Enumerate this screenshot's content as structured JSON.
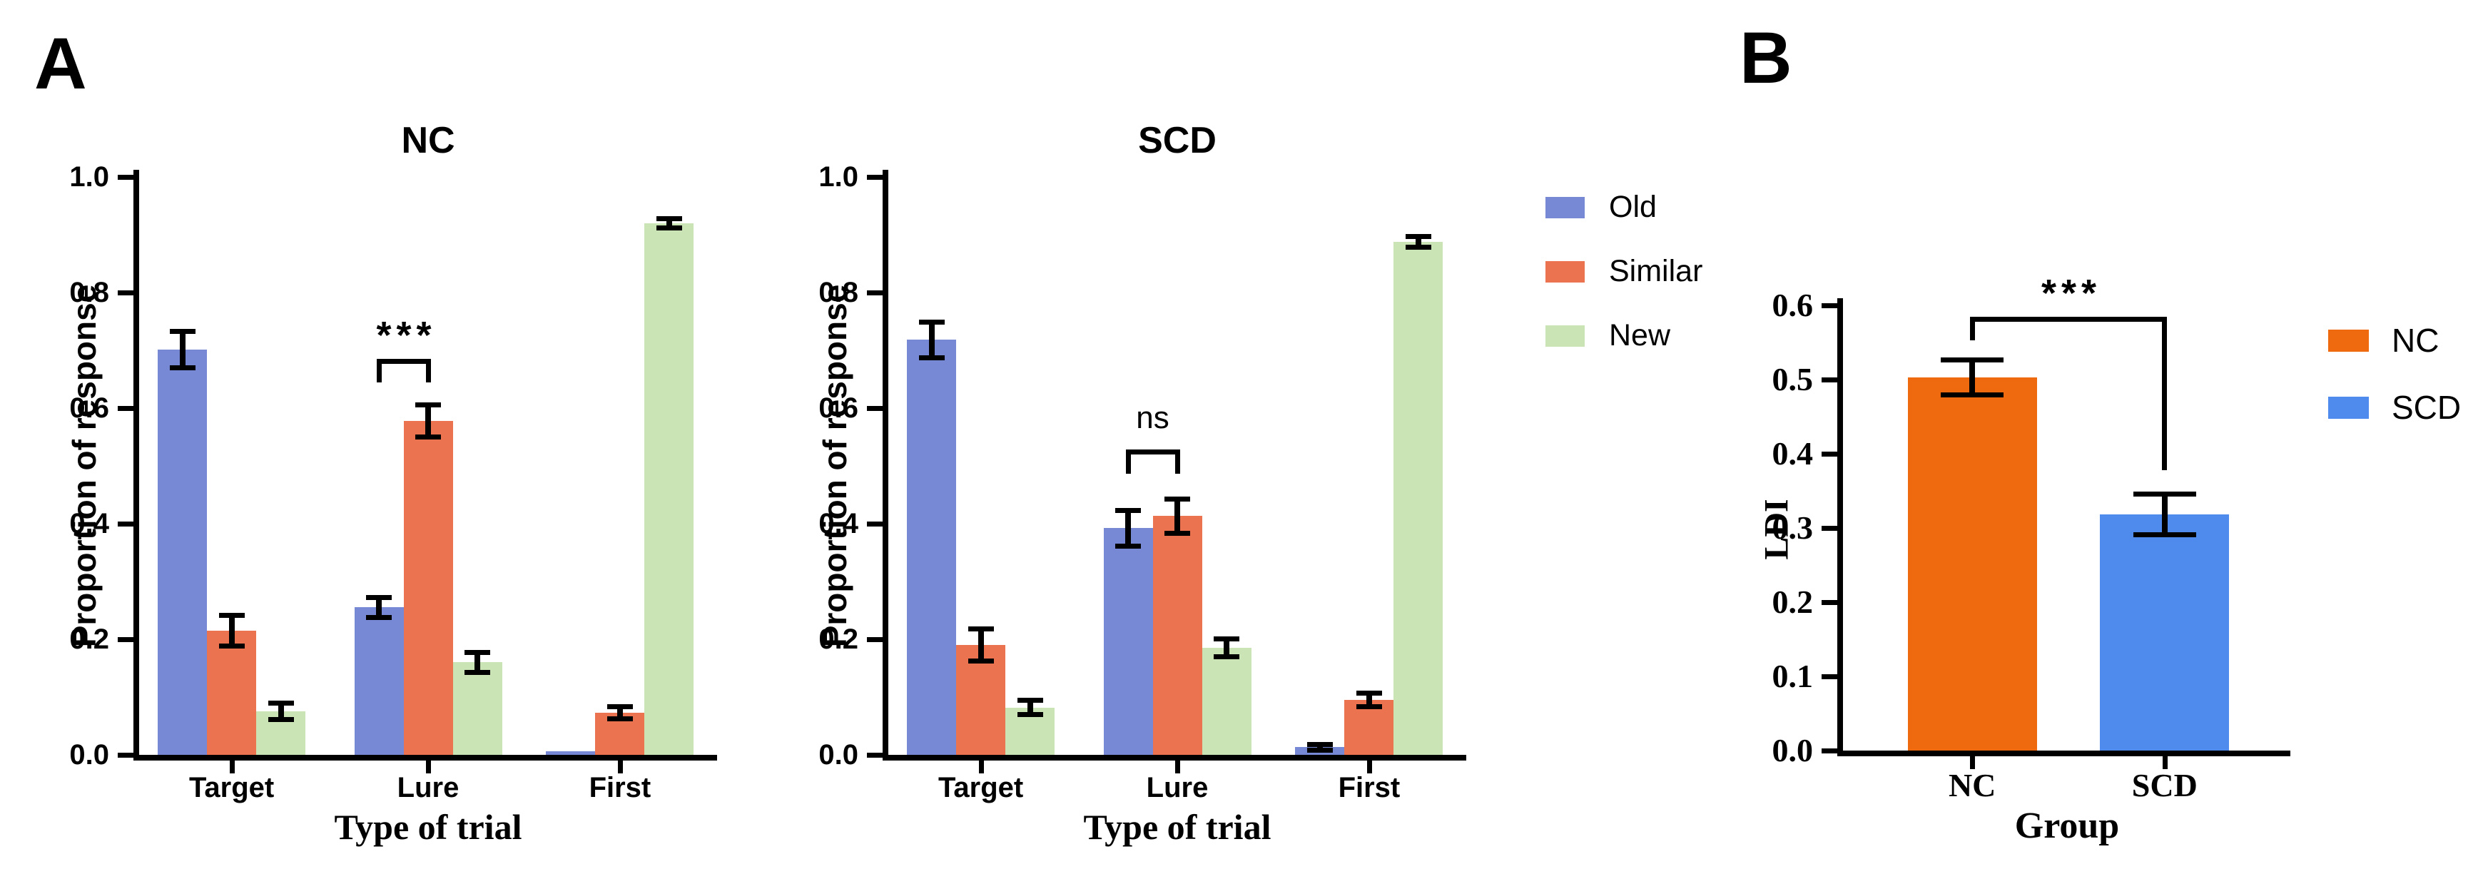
{
  "panels": {
    "a_label": "A",
    "b_label": "B"
  },
  "colors": {
    "old": "#7788D4",
    "similar": "#EB7350",
    "new": "#CBE4B6",
    "nc": "#EF6A0F",
    "scd": "#4F8BEC",
    "axis": "#000000"
  },
  "chart_data": [
    {
      "type": "bar",
      "title": "NC",
      "xlabel": "Type of trial",
      "ylabel": "Proportion of response",
      "ylim": [
        0,
        1.0
      ],
      "yticks": [
        0.0,
        0.2,
        0.4,
        0.6,
        0.8,
        1.0
      ],
      "categories": [
        "Target",
        "Lure",
        "First"
      ],
      "grid": false,
      "legend_position": "right-of-plot",
      "series": [
        {
          "name": "Old",
          "color": "old",
          "values": [
            0.701,
            0.255,
            0.006
          ],
          "errors": [
            0.032,
            0.018,
            null
          ]
        },
        {
          "name": "Similar",
          "color": "similar",
          "values": [
            0.215,
            0.578,
            0.073
          ],
          "errors": [
            0.027,
            0.028,
            0.011
          ]
        },
        {
          "name": "New",
          "color": "new",
          "values": [
            0.075,
            0.16,
            0.92
          ],
          "errors": [
            0.015,
            0.018,
            0.009
          ]
        }
      ],
      "annotation": {
        "label": "***",
        "category": "Lure",
        "from": "Old",
        "to": "Similar",
        "y": 0.685,
        "leg_left": 0.645,
        "leg_right": 0.645
      }
    },
    {
      "type": "bar",
      "title": "SCD",
      "xlabel": "Type of trial",
      "ylabel": "Proportion of response",
      "ylim": [
        0,
        1.0
      ],
      "yticks": [
        0.0,
        0.2,
        0.4,
        0.6,
        0.8,
        1.0
      ],
      "categories": [
        "Target",
        "Lure",
        "First"
      ],
      "grid": false,
      "series": [
        {
          "name": "Old",
          "color": "old",
          "values": [
            0.718,
            0.392,
            0.013
          ],
          "errors": [
            0.032,
            0.031,
            0.006
          ]
        },
        {
          "name": "Similar",
          "color": "similar",
          "values": [
            0.19,
            0.413,
            0.095
          ],
          "errors": [
            0.028,
            0.03,
            0.012
          ]
        },
        {
          "name": "New",
          "color": "new",
          "values": [
            0.082,
            0.185,
            0.888
          ],
          "errors": [
            0.013,
            0.016,
            0.01
          ]
        }
      ],
      "annotation": {
        "label": "ns",
        "category": "Lure",
        "from": "Old",
        "to": "Similar",
        "y": 0.528,
        "leg_left": 0.487,
        "leg_right": 0.487
      }
    },
    {
      "type": "bar",
      "title": "",
      "xlabel": "Group",
      "ylabel": "LDI",
      "ylim": [
        0,
        0.6
      ],
      "yticks": [
        0.0,
        0.1,
        0.2,
        0.3,
        0.4,
        0.5,
        0.6
      ],
      "categories": [
        "NC",
        "SCD"
      ],
      "grid": false,
      "legend_position": "right-of-plot",
      "series": [
        {
          "name": "LDI",
          "colors": [
            "nc",
            "scd"
          ],
          "values": [
            0.503,
            0.318
          ],
          "errors": [
            0.024,
            0.028
          ]
        }
      ],
      "annotation": {
        "label": "***",
        "from_category": "NC",
        "to_category": "SCD",
        "y": 0.585,
        "leg_left": 0.553,
        "leg_right": 0.378
      }
    }
  ]
}
